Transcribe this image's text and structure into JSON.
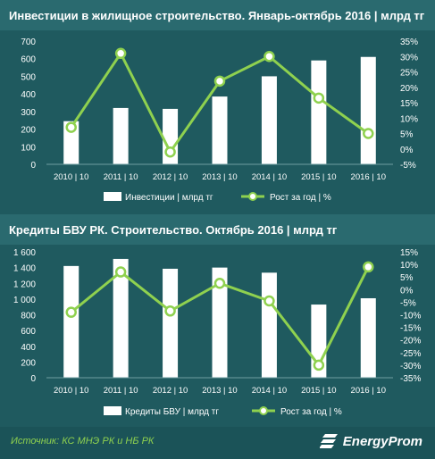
{
  "footer": {
    "source_text": "Источник: КС МНЭ РК и НБ РК",
    "brand_name": "EnergyProm"
  },
  "colors": {
    "background": "#1f5a5f",
    "title_bar": "#2a6a6f",
    "bar": "#ffffff",
    "line": "#8fd14f",
    "text": "#ffffff"
  },
  "chart_data": [
    {
      "type": "bar",
      "title": "Инвестиции в жилищное строительство. Январь-октябрь 2016  | млрд тг",
      "categories": [
        "2010 | 10",
        "2011 | 10",
        "2012 | 10",
        "2013 | 10",
        "2014 | 10",
        "2015 | 10",
        "2016 | 10"
      ],
      "series": [
        {
          "name": "Инвестиции | млрд тг",
          "type": "bar",
          "axis": "left",
          "values": [
            245,
            320,
            315,
            385,
            500,
            590,
            610
          ]
        },
        {
          "name": "Рост за год | %",
          "type": "line",
          "axis": "right",
          "values": [
            7,
            31,
            -1,
            22,
            30,
            16.5,
            5
          ]
        }
      ],
      "y_left": {
        "min": 0,
        "max": 700,
        "ticks": [
          "0",
          "100",
          "200",
          "300",
          "400",
          "500",
          "600",
          "700"
        ]
      },
      "y_right": {
        "min": -5,
        "max": 35,
        "ticks": [
          "-5%",
          "0%",
          "5%",
          "10%",
          "15%",
          "20%",
          "25%",
          "30%",
          "35%"
        ]
      },
      "grid": false,
      "legend_position": "bottom"
    },
    {
      "type": "bar",
      "title": "Кредиты БВУ РК. Строительство. Октябрь 2016  | млрд тг",
      "categories": [
        "2010 | 10",
        "2011 | 10",
        "2012 | 10",
        "2013 | 10",
        "2014 | 10",
        "2015 | 10",
        "2016 | 10"
      ],
      "series": [
        {
          "name": "Кредиты БВУ | млрд тг",
          "type": "bar",
          "axis": "left",
          "values": [
            1420,
            1510,
            1385,
            1400,
            1335,
            930,
            1010
          ]
        },
        {
          "name": "Рост за год | %",
          "type": "line",
          "axis": "right",
          "values": [
            -9,
            7,
            -8.5,
            2.5,
            -4.5,
            -30,
            9
          ]
        }
      ],
      "y_left": {
        "min": 0,
        "max": 1600,
        "ticks": [
          "0",
          "200",
          "400",
          "600",
          "800",
          "1 000",
          "1 200",
          "1 400",
          "1 600"
        ]
      },
      "y_right": {
        "min": -35,
        "max": 15,
        "ticks": [
          "-35%",
          "-30%",
          "-25%",
          "-20%",
          "-15%",
          "-10%",
          "-5%",
          "0%",
          "5%",
          "10%",
          "15%"
        ]
      },
      "grid": false,
      "legend_position": "bottom"
    }
  ]
}
